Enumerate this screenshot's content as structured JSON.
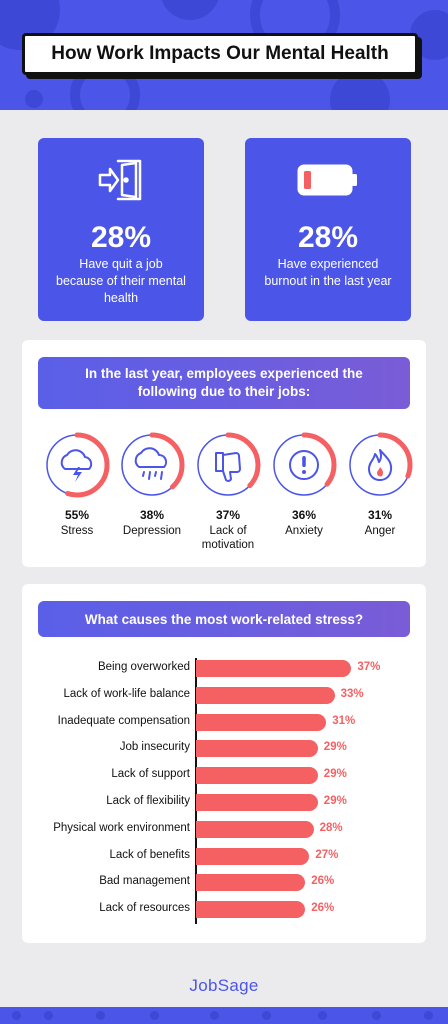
{
  "header": {
    "title": "How Work Impacts Our Mental Health"
  },
  "stats": [
    {
      "value": "28%",
      "text": "Have quit a job because of their mental health",
      "icon": "door-exit-icon"
    },
    {
      "value": "28%",
      "text": "Have experienced burnout in the last year",
      "icon": "low-battery-icon"
    }
  ],
  "experiences": {
    "heading": "In the last year, employees experienced the following due to their jobs:",
    "items": [
      {
        "value": "55%",
        "label": "Stress",
        "fraction": 0.55,
        "icon": "storm-cloud-icon"
      },
      {
        "value": "38%",
        "label": "Depression",
        "fraction": 0.38,
        "icon": "rain-cloud-icon"
      },
      {
        "value": "37%",
        "label": "Lack of motivation",
        "fraction": 0.37,
        "icon": "thumbs-down-icon"
      },
      {
        "value": "36%",
        "label": "Anxiety",
        "fraction": 0.36,
        "icon": "exclamation-icon"
      },
      {
        "value": "31%",
        "label": "Anger",
        "fraction": 0.31,
        "icon": "flame-icon"
      }
    ]
  },
  "stress_causes": {
    "heading": "What causes the most work-related stress?"
  },
  "chart_data": {
    "type": "bar",
    "orientation": "horizontal",
    "title": "What causes the most work-related stress?",
    "categories": [
      "Being overworked",
      "Lack of work-life balance",
      "Inadequate compensation",
      "Job insecurity",
      "Lack of support",
      "Lack of flexibility",
      "Physical work environment",
      "Lack of benefits",
      "Bad management",
      "Lack of resources"
    ],
    "values": [
      37,
      33,
      31,
      29,
      29,
      29,
      28,
      27,
      26,
      26
    ],
    "value_labels": [
      "37%",
      "33%",
      "31%",
      "29%",
      "29%",
      "29%",
      "28%",
      "27%",
      "26%",
      "26%"
    ],
    "bar_color": "#f56163"
  },
  "colors": {
    "brand": "#4b56e8",
    "accent": "#f56163",
    "panel": "#ffffff",
    "background": "#ebebed"
  },
  "footer": {
    "logo": "JobSage"
  }
}
